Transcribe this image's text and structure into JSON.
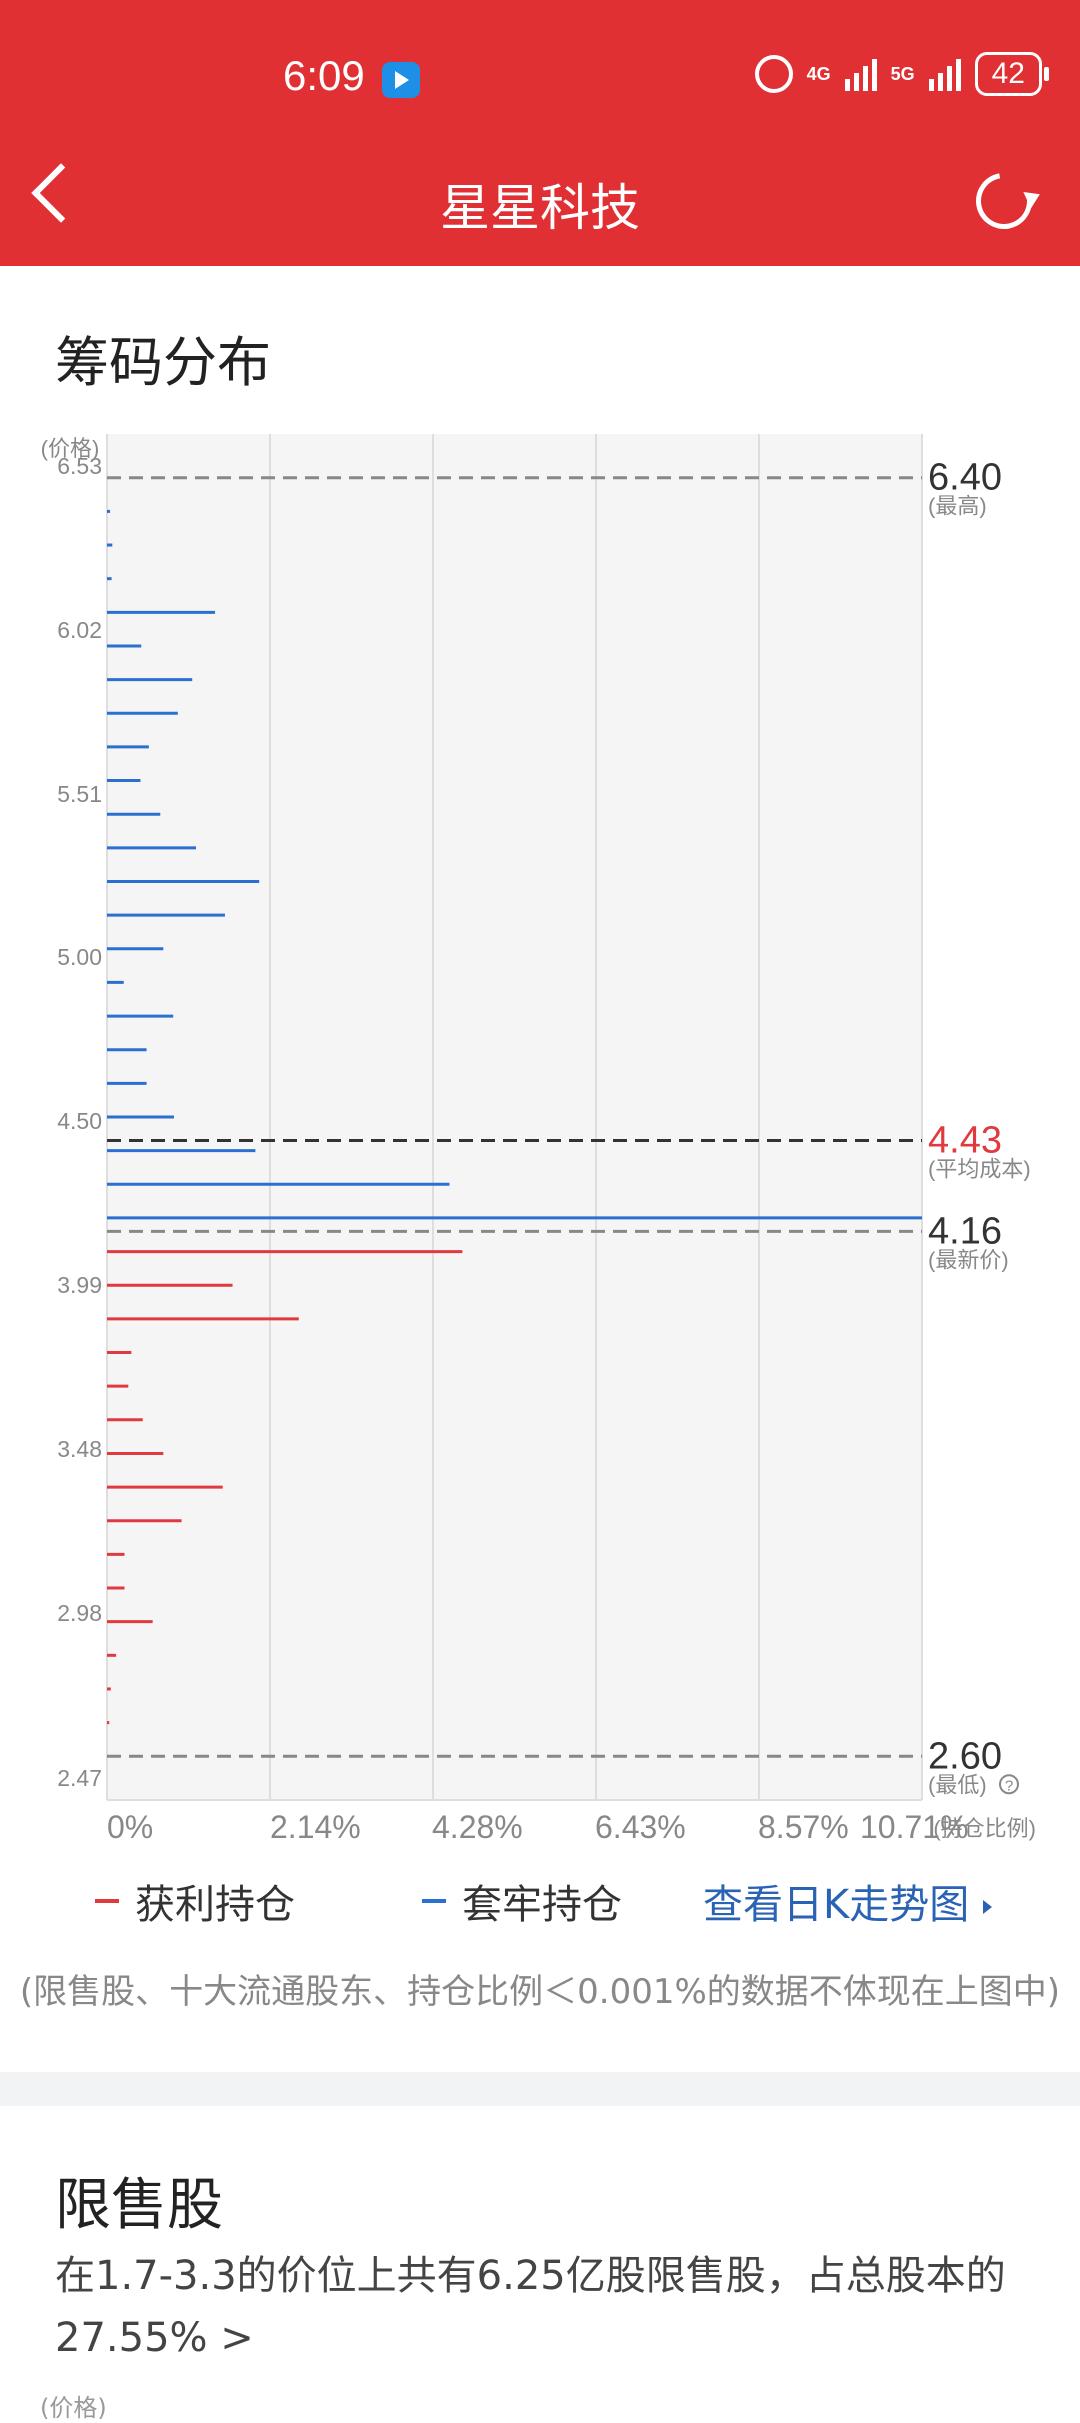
{
  "status": {
    "time": "6:09",
    "network1": "4G",
    "network2": "5G",
    "battery": "42"
  },
  "header": {
    "title": "星星科技"
  },
  "chips": {
    "section_title": "筹码分布"
  },
  "chart_data": {
    "type": "bar",
    "orientation": "horizontal",
    "y_axis_label": "(价格)",
    "x_axis_label": "(持仓比例)",
    "y_ticks": [
      "6.53",
      "6.02",
      "5.51",
      "5.00",
      "4.50",
      "3.99",
      "3.48",
      "2.98",
      "2.47"
    ],
    "x_ticks": [
      "0%",
      "2.14%",
      "4.28%",
      "6.43%",
      "8.57%",
      "10.71%"
    ],
    "ylim": [
      2.47,
      6.53
    ],
    "xlim": [
      0,
      10.71
    ],
    "grid": true,
    "reference_lines": [
      {
        "value": "6.40",
        "label": "(最高)",
        "price": 6.4,
        "color": "#888888",
        "value_color": "#333333"
      },
      {
        "value": "4.43",
        "label": "(平均成本)",
        "price": 4.43,
        "color": "#333333",
        "value_color": "#e03a3e"
      },
      {
        "value": "4.16",
        "label": "(最新价)",
        "price": 4.16,
        "color": "#888888",
        "value_color": "#333333"
      },
      {
        "value": "2.60",
        "label": "(最低)",
        "price": 2.6,
        "color": "#888888",
        "value_color": "#333333"
      }
    ],
    "series": [
      {
        "name": "套牢持仓",
        "color": "#2b6fd1",
        "points": [
          {
            "price": 6.3,
            "pct": 0.04
          },
          {
            "price": 6.2,
            "pct": 0.07
          },
          {
            "price": 6.1,
            "pct": 0.06
          },
          {
            "price": 6.0,
            "pct": 1.42
          },
          {
            "price": 5.9,
            "pct": 0.45
          },
          {
            "price": 5.8,
            "pct": 1.12
          },
          {
            "price": 5.7,
            "pct": 0.93
          },
          {
            "price": 5.6,
            "pct": 0.55
          },
          {
            "price": 5.5,
            "pct": 0.44
          },
          {
            "price": 5.4,
            "pct": 0.7
          },
          {
            "price": 5.3,
            "pct": 1.17
          },
          {
            "price": 5.2,
            "pct": 2.0
          },
          {
            "price": 5.1,
            "pct": 1.55
          },
          {
            "price": 5.0,
            "pct": 0.74
          },
          {
            "price": 4.9,
            "pct": 0.22
          },
          {
            "price": 4.8,
            "pct": 0.87
          },
          {
            "price": 4.7,
            "pct": 0.52
          },
          {
            "price": 4.6,
            "pct": 0.52
          },
          {
            "price": 4.5,
            "pct": 0.88
          },
          {
            "price": 4.4,
            "pct": 1.95
          },
          {
            "price": 4.3,
            "pct": 4.5
          },
          {
            "price": 4.2,
            "pct": 10.71
          }
        ]
      },
      {
        "name": "获利持仓",
        "color": "#e03a3e",
        "points": [
          {
            "price": 4.1,
            "pct": 4.67
          },
          {
            "price": 4.0,
            "pct": 1.65
          },
          {
            "price": 3.9,
            "pct": 2.52
          },
          {
            "price": 3.8,
            "pct": 0.32
          },
          {
            "price": 3.7,
            "pct": 0.28
          },
          {
            "price": 3.6,
            "pct": 0.47
          },
          {
            "price": 3.5,
            "pct": 0.74
          },
          {
            "price": 3.4,
            "pct": 1.52
          },
          {
            "price": 3.3,
            "pct": 0.98
          },
          {
            "price": 3.2,
            "pct": 0.23
          },
          {
            "price": 3.1,
            "pct": 0.23
          },
          {
            "price": 3.0,
            "pct": 0.6
          },
          {
            "price": 2.9,
            "pct": 0.12
          },
          {
            "price": 2.8,
            "pct": 0.05
          },
          {
            "price": 2.7,
            "pct": 0.03
          }
        ]
      }
    ]
  },
  "legend": {
    "profit": "获利持仓",
    "trapped": "套牢持仓",
    "profit_color": "#e03a3e",
    "trapped_color": "#2b6fd1"
  },
  "k_link": "查看日K走势图",
  "note": "(限售股、十大流通股东、持仓比例＜0.001%的数据不体现在上图中)",
  "restricted": {
    "title": "限售股",
    "description": "在1.7-3.3的价位上共有6.25亿股限售股，占总股本的27.55% >",
    "axis_label": "(价格)"
  }
}
